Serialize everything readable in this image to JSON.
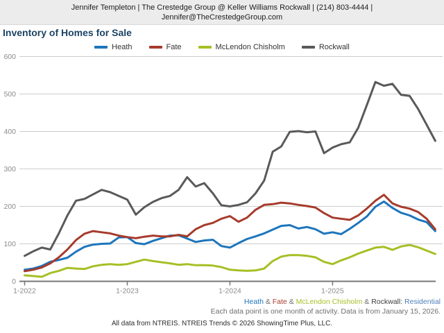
{
  "header": {
    "line1": "Jennifer Templeton | The Crestedge Group @ Keller Williams Rockwall | (214) 803-4444 |",
    "line2": "Jennifer@TheCrestedgeGroup.com"
  },
  "title": "Inventory of Homes for Sale",
  "chart_data": {
    "type": "line",
    "title": "Inventory of Homes for Sale",
    "x_unit": "month",
    "x_start": "1-2022",
    "x_end": "1-2026",
    "x_tick_labels": [
      "1-2022",
      "1-2023",
      "1-2024",
      "1-2025"
    ],
    "x_tick_indices": [
      0,
      12,
      24,
      36
    ],
    "yticks": [
      0,
      100,
      200,
      300,
      400,
      500,
      600
    ],
    "ylim": [
      0,
      620
    ],
    "grid": "horizontal",
    "legend_position": "top-center",
    "series": [
      {
        "name": "Heath",
        "color": "#1c75bc",
        "values": [
          31,
          34,
          41,
          52,
          57,
          63,
          79,
          92,
          98,
          100,
          101,
          117,
          118,
          102,
          99,
          108,
          115,
          122,
          123,
          114,
          105,
          109,
          111,
          94,
          90,
          102,
          113,
          120,
          128,
          138,
          148,
          150,
          141,
          145,
          139,
          127,
          131,
          126,
          140,
          156,
          173,
          199,
          213,
          196,
          183,
          176,
          165,
          158,
          134
        ]
      },
      {
        "name": "Fate",
        "color": "#a63b2c",
        "values": [
          27,
          31,
          37,
          48,
          64,
          85,
          110,
          127,
          134,
          131,
          128,
          122,
          118,
          115,
          119,
          122,
          120,
          120,
          124,
          120,
          139,
          150,
          156,
          167,
          174,
          159,
          170,
          191,
          204,
          206,
          210,
          208,
          204,
          201,
          197,
          182,
          170,
          167,
          164,
          176,
          194,
          215,
          231,
          208,
          199,
          194,
          185,
          167,
          139
        ]
      },
      {
        "name": "McLendon Chisholm",
        "color": "#a6bf25",
        "values": [
          16,
          14,
          12,
          22,
          28,
          36,
          34,
          33,
          40,
          44,
          46,
          44,
          46,
          52,
          58,
          54,
          51,
          48,
          44,
          46,
          43,
          43,
          42,
          38,
          31,
          29,
          28,
          29,
          34,
          54,
          66,
          70,
          70,
          68,
          64,
          52,
          46,
          56,
          64,
          74,
          82,
          90,
          92,
          84,
          93,
          97,
          91,
          82,
          73
        ]
      },
      {
        "name": "Rockwall",
        "color": "#59595b",
        "values": [
          68,
          80,
          90,
          85,
          128,
          176,
          215,
          220,
          232,
          244,
          238,
          228,
          218,
          178,
          198,
          212,
          222,
          228,
          244,
          278,
          253,
          262,
          235,
          203,
          200,
          204,
          211,
          235,
          269,
          346,
          360,
          399,
          401,
          398,
          400,
          342,
          357,
          366,
          371,
          410,
          470,
          532,
          522,
          527,
          498,
          495,
          460,
          418,
          375
        ]
      }
    ]
  },
  "footer": {
    "communities_line": [
      {
        "text": "Heath",
        "color": "#1c75bc"
      },
      {
        "text": " & ",
        "color": "#6d6d6d"
      },
      {
        "text": "Fate",
        "color": "#a63b2c"
      },
      {
        "text": " & ",
        "color": "#6d6d6d"
      },
      {
        "text": "McLendon Chisholm",
        "color": "#a6bf25"
      },
      {
        "text": " & ",
        "color": "#6d6d6d"
      },
      {
        "text": "Rockwall:",
        "color": "#3c3c3e"
      },
      {
        "text": " Residential",
        "color": "#4d7eb8"
      }
    ],
    "note": "Each data point is one month of activity. Data is from January 15, 2026.",
    "attribution": "All data from NTREIS. NTREIS Trends © 2026 ShowingTime Plus, LLC."
  }
}
